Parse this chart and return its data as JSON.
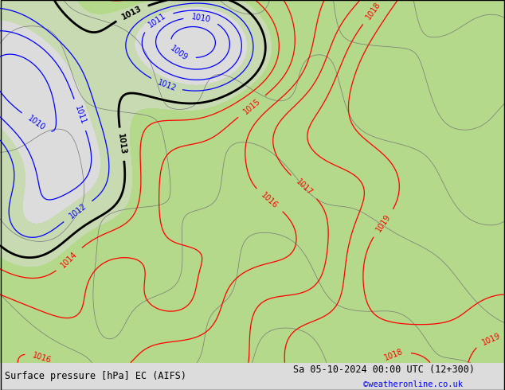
{
  "title_left": "Surface pressure [hPa] EC (AIFS)",
  "title_right": "Sa 05-10-2024 00:00 UTC (12+300)",
  "credit": "©weatheronline.co.uk",
  "bg_color": "#dcdcdc",
  "green_color": "#b5d98a",
  "figsize": [
    6.34,
    4.9
  ],
  "dpi": 100
}
